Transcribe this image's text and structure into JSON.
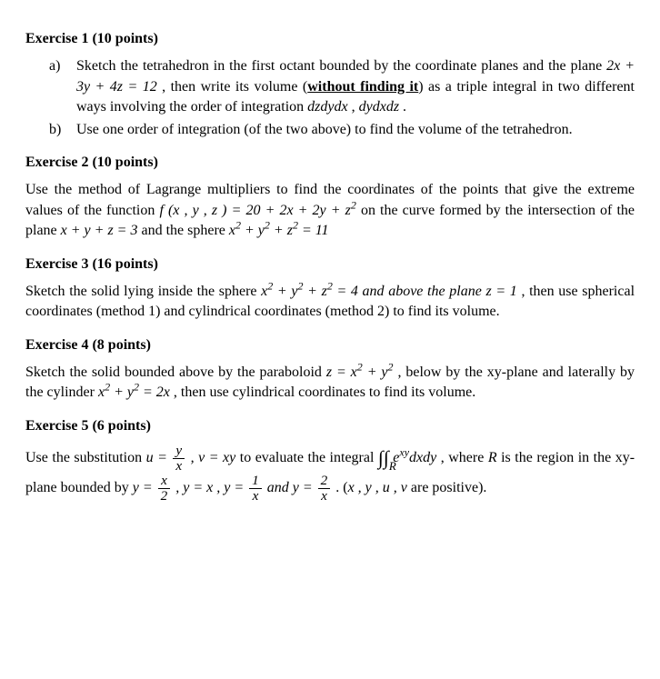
{
  "ex1": {
    "heading": "Exercise 1 (10 points)",
    "a_marker": "a)",
    "a1": "Sketch the tetrahedron in the first octant bounded by the coordinate planes and the plane ",
    "a_eq": "2x + 3y + 4z = 12",
    "a2": " , then write its volume (",
    "a_underline": "without finding it",
    "a3": ") as a triple integral in two different ways involving the order of integration ",
    "a_ord1": "dzdydx",
    "a_comma": " , ",
    "a_ord2": "dydxdz",
    "a_end": " .",
    "b_marker": "b)",
    "b_text": "Use one order of integration (of the two above) to find the volume of the tetrahedron."
  },
  "ex2": {
    "heading": "Exercise 2 (10 points)",
    "p1a": "Use the method of Lagrange multipliers to find the coordinates of the points that give the extreme values of the function ",
    "f_args": "f (x , y , z ) = 20 + 2x + 2y + z",
    "p1b": " on the curve formed by the intersection of the plane ",
    "plane": "x + y + z = 3",
    "p1c": " and the sphere ",
    "p1d": " = 11",
    "sphere_parts": {
      "a": "x",
      "b": " + y",
      "c": " + z"
    }
  },
  "ex3": {
    "heading": "Exercise 3 (16 points)",
    "p1a": "Sketch the solid lying inside the sphere ",
    "p1b": " = 4  and above the plane ",
    "plane": "z  = 1",
    "p1c": ", then use spherical coordinates (method 1) and cylindrical coordinates (method 2) to find its volume."
  },
  "ex4": {
    "heading": "Exercise 4 (8 points)",
    "p1a": "Sketch the solid bounded above by the paraboloid ",
    "parab": "z  = x",
    "parab2": " + y",
    "p1b": " , below by the xy-plane and laterally by the cylinder ",
    "cyl1": "x",
    "cyl2": " + y",
    "cyl3": " = 2x",
    "p1c": " , then use cylindrical coordinates to find its volume."
  },
  "ex5": {
    "heading": "Exercise 5 (6 points)",
    "p1a": "Use the substitution ",
    "u_eq_a": "u = ",
    "frac1_num": "y",
    "frac1_den": "x",
    "v_eq": "  , v = xy",
    "p1b": "  to evaluate the integral ",
    "iint_sub": "R",
    "integrand_a": " e",
    "integrand_exp": "xy",
    "integrand_b": "dxdy",
    "p1c": " , where ",
    "R": "R",
    "p1d": " is the region in the xy-plane bounded by ",
    "b1a": "y = ",
    "frac2_num": "x",
    "frac2_den": "2",
    "b1b": " , y = x , y = ",
    "frac3_num": "1",
    "frac3_den": "x",
    "b1c": "  and y = ",
    "frac4_num": "2",
    "frac4_den": "x",
    "p1e": " . (",
    "vars": "x , y , u , v",
    "p1f": " are positive)."
  },
  "sq": "2"
}
